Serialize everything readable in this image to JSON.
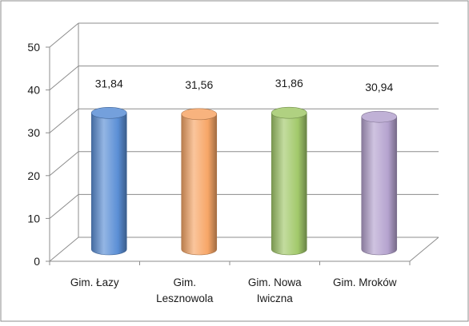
{
  "chart_data": {
    "type": "bar",
    "style": "3d-cylinder",
    "title": "",
    "xlabel": "",
    "ylabel": "",
    "ylim": [
      0,
      50
    ],
    "yticks": [
      0,
      10,
      20,
      30,
      40,
      50
    ],
    "ytick_labels": [
      "0",
      "10",
      "20",
      "30",
      "40",
      "50"
    ],
    "grid": true,
    "legend": "none",
    "categories": [
      "Gim. Łazy",
      "Gim. Lesznowola",
      "Gim. Nowa Iwiczna",
      "Gim. Mroków"
    ],
    "category_lines": [
      [
        "Gim. Łazy"
      ],
      [
        "Gim.",
        "Lesznowola"
      ],
      [
        "Gim. Nowa",
        "Iwiczna"
      ],
      [
        "Gim. Mroków"
      ]
    ],
    "values": [
      31.84,
      31.56,
      31.86,
      30.94
    ],
    "value_labels": [
      "31,84",
      "31,56",
      "31,86",
      "30,94"
    ],
    "colors": [
      "#5b8fd6",
      "#f7a667",
      "#a2c96b",
      "#b5a3cf"
    ]
  }
}
